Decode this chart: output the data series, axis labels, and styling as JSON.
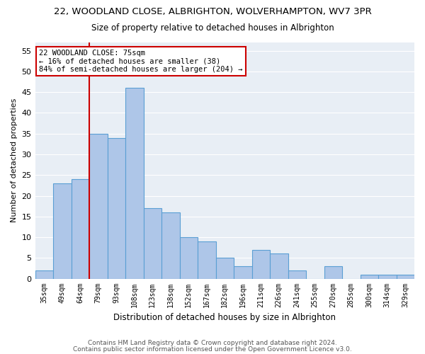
{
  "title": "22, WOODLAND CLOSE, ALBRIGHTON, WOLVERHAMPTON, WV7 3PR",
  "subtitle": "Size of property relative to detached houses in Albrighton",
  "xlabel": "Distribution of detached houses by size in Albrighton",
  "ylabel": "Number of detached properties",
  "bar_labels": [
    "35sqm",
    "49sqm",
    "64sqm",
    "79sqm",
    "93sqm",
    "108sqm",
    "123sqm",
    "138sqm",
    "152sqm",
    "167sqm",
    "182sqm",
    "196sqm",
    "211sqm",
    "226sqm",
    "241sqm",
    "255sqm",
    "270sqm",
    "285sqm",
    "300sqm",
    "314sqm",
    "329sqm"
  ],
  "bar_values": [
    2,
    23,
    24,
    35,
    34,
    46,
    17,
    16,
    10,
    9,
    5,
    3,
    7,
    6,
    2,
    0,
    3,
    0,
    1,
    1,
    1
  ],
  "bar_color": "#aec6e8",
  "bar_edge_color": "#5a9fd4",
  "bg_color": "#e8eef5",
  "vline_color": "#cc0000",
  "annotation_text": "22 WOODLAND CLOSE: 75sqm\n← 16% of detached houses are smaller (38)\n84% of semi-detached houses are larger (204) →",
  "annotation_box_color": "#cc0000",
  "ylim": [
    0,
    57
  ],
  "yticks": [
    0,
    5,
    10,
    15,
    20,
    25,
    30,
    35,
    40,
    45,
    50,
    55
  ],
  "footer1": "Contains HM Land Registry data © Crown copyright and database right 2024.",
  "footer2": "Contains public sector information licensed under the Open Government Licence v3.0.",
  "title_fontsize": 9.5,
  "subtitle_fontsize": 8.5,
  "footer_fontsize": 6.5
}
